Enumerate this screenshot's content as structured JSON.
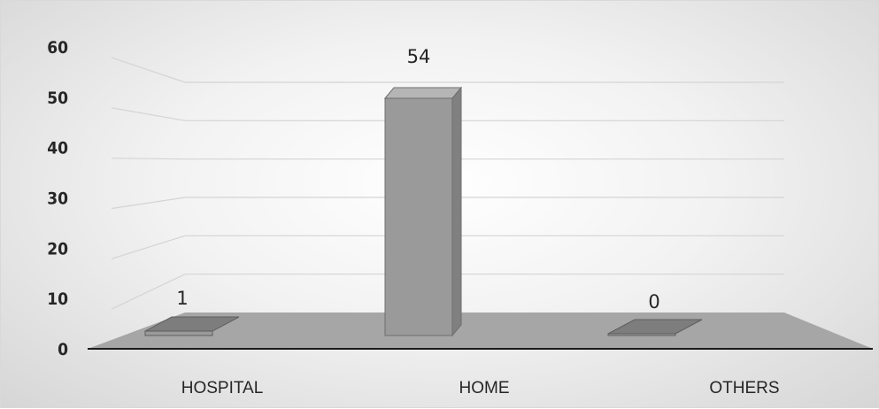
{
  "chart_data": {
    "type": "bar",
    "categories": [
      "HOSPITAL",
      "HOME",
      "OTHERS"
    ],
    "values": [
      1,
      54,
      0
    ],
    "data_labels": [
      "1",
      "54",
      "0"
    ],
    "ylim": [
      0,
      60
    ],
    "y_ticks": [
      "0",
      "10",
      "20",
      "30",
      "40",
      "50",
      "60"
    ],
    "style": "3d-column",
    "grid": true,
    "legend": "none",
    "colors": {
      "bar_front": "#9a9a9a",
      "bar_side": "#808080",
      "bar_top": "#b5b5b5",
      "floor": "#a6a6a6",
      "gridline": "#d4d4d4",
      "axis": "#1a1a1a"
    }
  }
}
